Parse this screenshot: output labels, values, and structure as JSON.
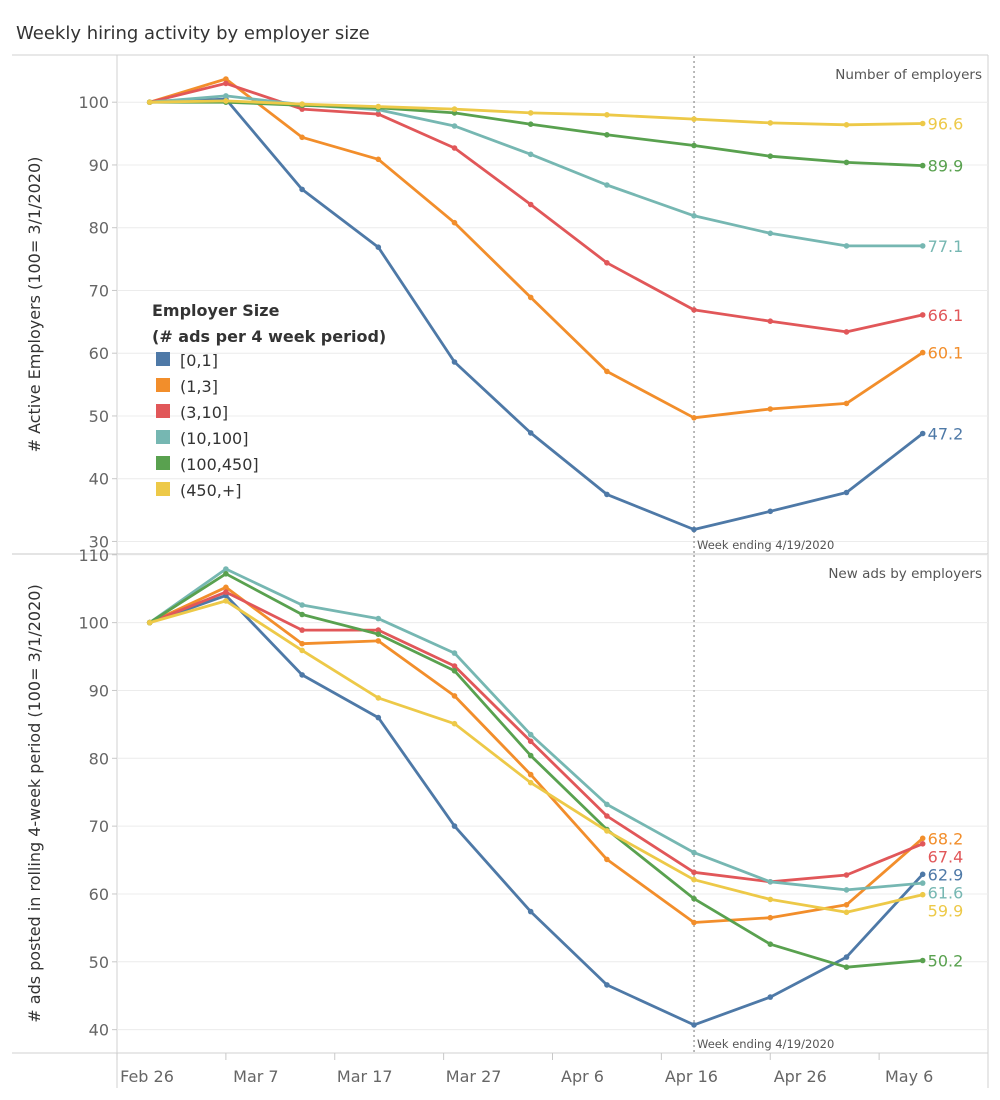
{
  "title": "Weekly hiring activity by employer size",
  "chart_data": {
    "type": "line",
    "title": "Weekly hiring activity by employer size",
    "x": [
      "Feb 29",
      "Mar 7",
      "Mar 14",
      "Mar 21",
      "Mar 28",
      "Apr 4",
      "Apr 11",
      "Apr 19",
      "Apr 26",
      "May 3",
      "May 10"
    ],
    "x_offsets_days": [
      0,
      7,
      14,
      21,
      28,
      35,
      42,
      50,
      57,
      64,
      71
    ],
    "x_axis_range_days": [
      -3,
      77
    ],
    "x_tick_labels": [
      {
        "label": "Feb 26",
        "day": -3
      },
      {
        "label": "Mar 7",
        "day": 7
      },
      {
        "label": "Mar 17",
        "day": 17
      },
      {
        "label": "Mar 27",
        "day": 27
      },
      {
        "label": "Apr 6",
        "day": 37
      },
      {
        "label": "Apr 16",
        "day": 47
      },
      {
        "label": "Apr 26",
        "day": 57
      },
      {
        "label": "May 6",
        "day": 67
      }
    ],
    "legend": {
      "title_line1": "Employer Size",
      "title_line2": "(# ads per 4 week period)",
      "placement": "left"
    },
    "reference_line": {
      "day": 50,
      "label": "Week ending 4/19/2020"
    },
    "panels": [
      {
        "label": "Number of employers",
        "ylabel": "# Active Employers (100= 3/1/2020)",
        "ylim": [
          28,
          108
        ],
        "yticks": [
          "30",
          "40",
          "50",
          "60",
          "70",
          "80",
          "90",
          "100"
        ],
        "series": [
          {
            "name": "[0,1]",
            "color": "#4e79a7",
            "end_label": "47.2",
            "values": [
              100,
              100.5,
              86.1,
              76.9,
              58.6,
              47.3,
              37.5,
              31.9,
              34.8,
              37.8,
              47.2
            ]
          },
          {
            "name": "(1,3]",
            "color": "#f28e2b",
            "end_label": "60.1",
            "values": [
              100,
              103.7,
              94.4,
              90.9,
              80.8,
              68.9,
              57.1,
              49.7,
              51.1,
              52.0,
              60.1
            ]
          },
          {
            "name": "(3,10]",
            "color": "#e15759",
            "end_label": "66.1",
            "values": [
              100,
              103.0,
              98.9,
              98.1,
              92.7,
              83.7,
              74.4,
              66.9,
              65.1,
              63.4,
              66.1
            ]
          },
          {
            "name": "(10,100]",
            "color": "#76b7b2",
            "end_label": "77.1",
            "values": [
              100,
              101.0,
              99.6,
              98.8,
              96.2,
              91.7,
              86.8,
              81.9,
              79.1,
              77.1,
              77.1
            ]
          },
          {
            "name": "(100,450]",
            "color": "#59a14f",
            "end_label": "89.9",
            "values": [
              100,
              100.0,
              99.5,
              99.1,
              98.3,
              96.5,
              94.8,
              93.1,
              91.4,
              90.4,
              89.9
            ]
          },
          {
            "name": "(450,+]",
            "color": "#edc948",
            "end_label": "96.6",
            "values": [
              100,
              100.2,
              99.7,
              99.3,
              98.9,
              98.3,
              98.0,
              97.3,
              96.7,
              96.4,
              96.6
            ]
          }
        ]
      },
      {
        "label": "New ads by employers",
        "ylabel": "# ads posted in rolling 4-week period (100= 3/1/2020)",
        "ylim": [
          37,
          111
        ],
        "yticks": [
          "40",
          "50",
          "60",
          "70",
          "80",
          "90",
          "100",
          "110"
        ],
        "series": [
          {
            "name": "[0,1]",
            "color": "#4e79a7",
            "end_label": "62.9",
            "values": [
              100,
              104.0,
              92.3,
              86.0,
              70.0,
              57.4,
              46.6,
              40.7,
              44.8,
              50.7,
              62.9
            ]
          },
          {
            "name": "(1,3]",
            "color": "#f28e2b",
            "end_label": "68.2",
            "values": [
              100,
              105.2,
              96.9,
              97.3,
              89.2,
              77.6,
              65.1,
              55.8,
              56.5,
              58.4,
              68.2
            ]
          },
          {
            "name": "(3,10]",
            "color": "#e15759",
            "end_label": "67.4",
            "values": [
              100,
              104.5,
              98.9,
              98.9,
              93.6,
              82.5,
              71.5,
              63.2,
              61.8,
              62.8,
              67.4
            ]
          },
          {
            "name": "(10,100]",
            "color": "#76b7b2",
            "end_label": "61.6",
            "values": [
              100,
              107.9,
              102.6,
              100.6,
              95.5,
              83.5,
              73.2,
              66.1,
              61.8,
              60.6,
              61.6
            ]
          },
          {
            "name": "(100,450]",
            "color": "#59a14f",
            "end_label": "50.2",
            "values": [
              100,
              107.2,
              101.2,
              98.3,
              92.9,
              80.4,
              69.5,
              59.3,
              52.6,
              49.2,
              50.2
            ]
          },
          {
            "name": "(450,+]",
            "color": "#edc948",
            "end_label": "59.9",
            "values": [
              100,
              103.2,
              95.9,
              88.9,
              85.1,
              76.4,
              69.3,
              62.1,
              59.2,
              57.3,
              59.9
            ]
          }
        ]
      }
    ]
  }
}
